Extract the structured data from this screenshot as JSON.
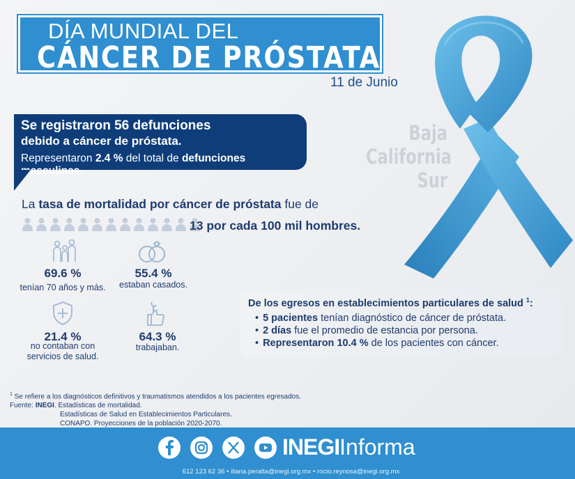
{
  "header": {
    "title_line1": "DÍA MUNDIAL DEL",
    "title_line2": "CÁNCER DE PRÓSTATA",
    "date": "11 de Junio"
  },
  "region": {
    "line1": "Baja",
    "line2": "California",
    "line3": "Sur"
  },
  "deaths": {
    "line1": "Se registraron 56 defunciones",
    "line2": "debido a cáncer de próstata.",
    "line3_pre": "Representaron ",
    "line3_pct": "2.4 %",
    "line3_mid": " del total de ",
    "line3_bold": "defunciones masculinas."
  },
  "mortality": {
    "pre": "La ",
    "bold": "tasa de mortalidad por cáncer de próstata",
    "post": " fue de",
    "rate": "13 por cada 100 mil hombres."
  },
  "stats": [
    {
      "value": "69.6 %",
      "desc": "tenían 70 años y más.",
      "icon": "family-icon"
    },
    {
      "value": "55.4 %",
      "desc": "estaban casados.",
      "icon": "rings-icon"
    },
    {
      "value": "21.4 %",
      "desc": "no contaban con servicios de salud.",
      "icon": "health-shield-icon"
    },
    {
      "value": "64.3 %",
      "desc": "trabajaban.",
      "icon": "thumbs-up-wrench-icon"
    }
  ],
  "egresos": {
    "title": "De los egresos en establecimientos particulares de salud",
    "note_mark": "1",
    "colon": ":",
    "items": [
      {
        "bold": "5 pacientes",
        "text": " tenían diagnóstico de cáncer de próstata."
      },
      {
        "bold": "2 días",
        "text": " fue el promedio de estancia por persona."
      },
      {
        "bold": "Representaron 10.4 %",
        "text": " de los pacientes con cáncer."
      }
    ]
  },
  "notes": {
    "footnote_mark": "1",
    "footnote": " Se refiere a los diagnósticos definitivos y traumatismos atendidos a los pacientes egresados.",
    "source_label": "Fuente: ",
    "source_org": "INEGI",
    "source1": ". Estadísticas de mortalidad.",
    "source2": "Estadísticas de Salud en Establecimientos Particulares.",
    "source3": "CONAPO. Proyecciones de la población 2020-2070."
  },
  "footer": {
    "brand_bold": "INEGI",
    "brand_light": "Informa",
    "contact": "612 123 62 36 • iliana.peralta@inegi.org.mx • rocio.reynosa@inegi.org.mx",
    "social": [
      "facebook-icon",
      "instagram-icon",
      "x-icon",
      "youtube-icon"
    ]
  },
  "colors": {
    "brand_blue": "#2f8fd0",
    "navy": "#0e3d7a",
    "ribbon": "#4aa8dc",
    "text": "#1f3b6e"
  }
}
